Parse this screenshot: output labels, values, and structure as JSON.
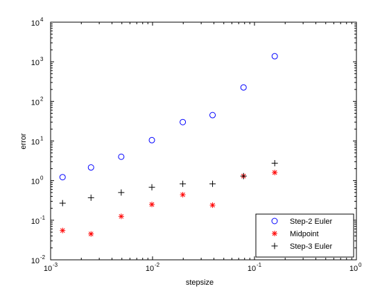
{
  "chart_data": {
    "type": "scatter",
    "title": "",
    "xlabel": "stepsize",
    "ylabel": "error",
    "xscale": "log",
    "yscale": "log",
    "xlim": [
      0.001,
      1
    ],
    "ylim": [
      0.01,
      10000
    ],
    "x_ticks": [
      {
        "base": "10",
        "exp": "-3"
      },
      {
        "base": "10",
        "exp": "-2"
      },
      {
        "base": "10",
        "exp": "-1"
      },
      {
        "base": "10",
        "exp": "0"
      }
    ],
    "y_ticks": [
      {
        "base": "10",
        "exp": "-2"
      },
      {
        "base": "10",
        "exp": "-1"
      },
      {
        "base": "10",
        "exp": "0"
      },
      {
        "base": "10",
        "exp": "1"
      },
      {
        "base": "10",
        "exp": "2"
      },
      {
        "base": "10",
        "exp": "3"
      },
      {
        "base": "10",
        "exp": "4"
      }
    ],
    "grid": false,
    "legend_position": "bottom-right",
    "series": [
      {
        "name": "Step-2 Euler",
        "marker": "circle",
        "color": "#0000ff",
        "x": [
          0.00131,
          0.00249,
          0.00493,
          0.00985,
          0.0198,
          0.0388,
          0.0781,
          0.158
        ],
        "y": [
          1.22,
          2.15,
          4.0,
          10.5,
          30.0,
          45.0,
          225.0,
          1380.0
        ]
      },
      {
        "name": "Midpoint",
        "marker": "asterisk",
        "color": "#ff0000",
        "x": [
          0.00131,
          0.00249,
          0.00493,
          0.00985,
          0.0198,
          0.0388,
          0.0781,
          0.158
        ],
        "y": [
          0.055,
          0.045,
          0.125,
          0.25,
          0.44,
          0.24,
          1.3,
          1.6
        ]
      },
      {
        "name": "Step-3 Euler",
        "marker": "plus",
        "color": "#000000",
        "x": [
          0.00131,
          0.00249,
          0.00493,
          0.00985,
          0.0198,
          0.0388,
          0.0781,
          0.158
        ],
        "y": [
          0.27,
          0.37,
          0.5,
          0.68,
          0.83,
          0.83,
          1.3,
          2.75
        ]
      }
    ]
  }
}
